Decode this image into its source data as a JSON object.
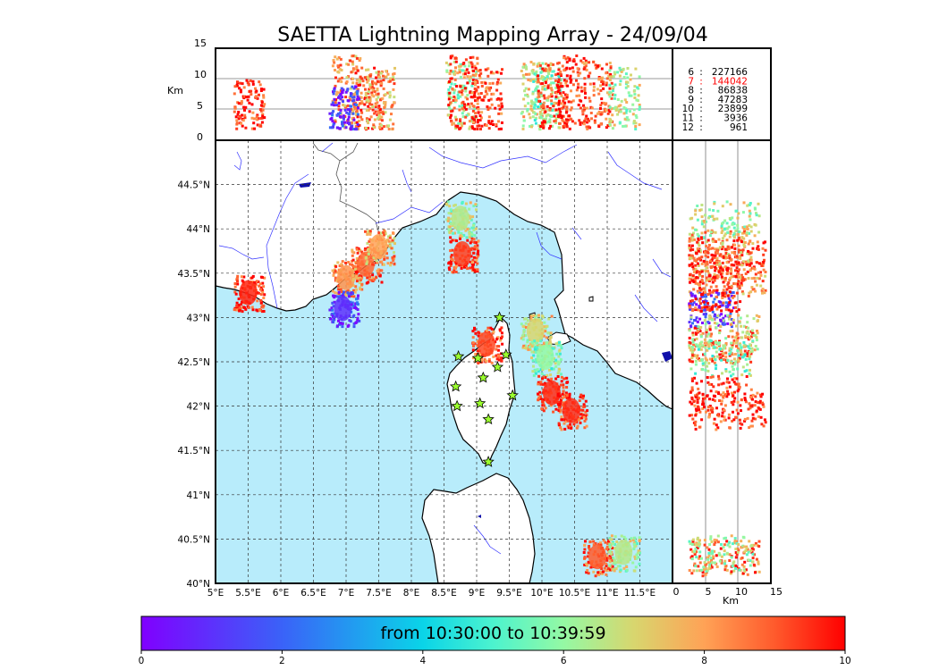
{
  "title": "SAETTA Lightning Mapping Array - 24/09/04",
  "top_panel": {
    "ylabel": "Km",
    "yticks": [
      "15",
      "10",
      "5",
      "0"
    ]
  },
  "right_panel": {
    "xlabel": "Km",
    "xticks": [
      "0",
      "5",
      "10",
      "15"
    ]
  },
  "map": {
    "lon_ticks": [
      "5°E",
      "5.5°E",
      "6°E",
      "6.5°E",
      "7°E",
      "7.5°E",
      "8°E",
      "8.5°E",
      "9°E",
      "9.5°E",
      "10°E",
      "10.5°E",
      "11°E",
      "11.5°E"
    ],
    "lat_ticks": [
      "44.5°N",
      "44°N",
      "43.5°N",
      "43°N",
      "42.5°N",
      "42°N",
      "41.5°N",
      "41°N",
      "40.5°N",
      "40°N"
    ],
    "sea_color": "#b8ecfb",
    "land_color": "#ffffff",
    "river_color": "#3333ff"
  },
  "counts": [
    {
      "label": "6",
      "sep": ":",
      "value": "227166",
      "color": "#000000"
    },
    {
      "label": "7",
      "sep": ":",
      "value": "144042",
      "color": "#ff0000"
    },
    {
      "label": "8",
      "sep": ":",
      "value": "86838",
      "color": "#000000"
    },
    {
      "label": "9",
      "sep": ":",
      "value": "47283",
      "color": "#000000"
    },
    {
      "label": "10",
      "sep": ":",
      "value": "23899",
      "color": "#000000"
    },
    {
      "label": "11",
      "sep": ":",
      "value": "3936",
      "color": "#000000"
    },
    {
      "label": "12",
      "sep": ":",
      "value": "961",
      "color": "#000000"
    }
  ],
  "colorbar": {
    "label": "from 10:30:00 to 10:39:59",
    "ticks": [
      "0",
      "2",
      "4",
      "6",
      "8",
      "10"
    ],
    "colormap": "rainbow"
  },
  "chart_data": {
    "type": "scatter",
    "xlim_lon": [
      5.0,
      12.0
    ],
    "ylim_lat": [
      40.0,
      45.0
    ],
    "alt_range_km": [
      0,
      15
    ],
    "time_range_minutes": [
      0,
      10
    ],
    "grid": true,
    "stations": [
      {
        "lon": 9.35,
        "lat": 43.0
      },
      {
        "lon": 8.72,
        "lat": 42.56
      },
      {
        "lon": 9.02,
        "lat": 42.54
      },
      {
        "lon": 9.45,
        "lat": 42.58
      },
      {
        "lon": 9.32,
        "lat": 42.44
      },
      {
        "lon": 9.1,
        "lat": 42.32
      },
      {
        "lon": 8.68,
        "lat": 42.22
      },
      {
        "lon": 9.55,
        "lat": 42.12
      },
      {
        "lon": 8.7,
        "lat": 42.0
      },
      {
        "lon": 9.05,
        "lat": 42.03
      },
      {
        "lon": 9.18,
        "lat": 41.85
      },
      {
        "lon": 9.18,
        "lat": 41.37
      }
    ],
    "storm_clusters": [
      {
        "lon": 7.0,
        "lat": 43.45,
        "time_min": 8.2,
        "alt_top_km": 14
      },
      {
        "lon": 7.3,
        "lat": 43.6,
        "time_min": 8.8,
        "alt_top_km": 12
      },
      {
        "lon": 7.5,
        "lat": 43.8,
        "time_min": 8.0,
        "alt_top_km": 12
      },
      {
        "lon": 6.95,
        "lat": 43.1,
        "time_min": 1.0,
        "alt_top_km": 9
      },
      {
        "lon": 8.75,
        "lat": 44.12,
        "time_min": 6.5,
        "alt_top_km": 13
      },
      {
        "lon": 8.78,
        "lat": 43.72,
        "time_min": 9.3,
        "alt_top_km": 14
      },
      {
        "lon": 9.15,
        "lat": 42.7,
        "time_min": 9.2,
        "alt_top_km": 12
      },
      {
        "lon": 9.9,
        "lat": 42.85,
        "time_min": 7.0,
        "alt_top_km": 13
      },
      {
        "lon": 10.05,
        "lat": 42.55,
        "time_min": 6.0,
        "alt_top_km": 12
      },
      {
        "lon": 10.15,
        "lat": 42.15,
        "time_min": 9.5,
        "alt_top_km": 13
      },
      {
        "lon": 10.45,
        "lat": 41.95,
        "time_min": 9.5,
        "alt_top_km": 14
      },
      {
        "lon": 10.85,
        "lat": 40.3,
        "time_min": 9.0,
        "alt_top_km": 13
      },
      {
        "lon": 11.25,
        "lat": 40.35,
        "time_min": 6.5,
        "alt_top_km": 12
      },
      {
        "lon": 5.5,
        "lat": 43.28,
        "time_min": 9.6,
        "alt_top_km": 10
      }
    ]
  }
}
